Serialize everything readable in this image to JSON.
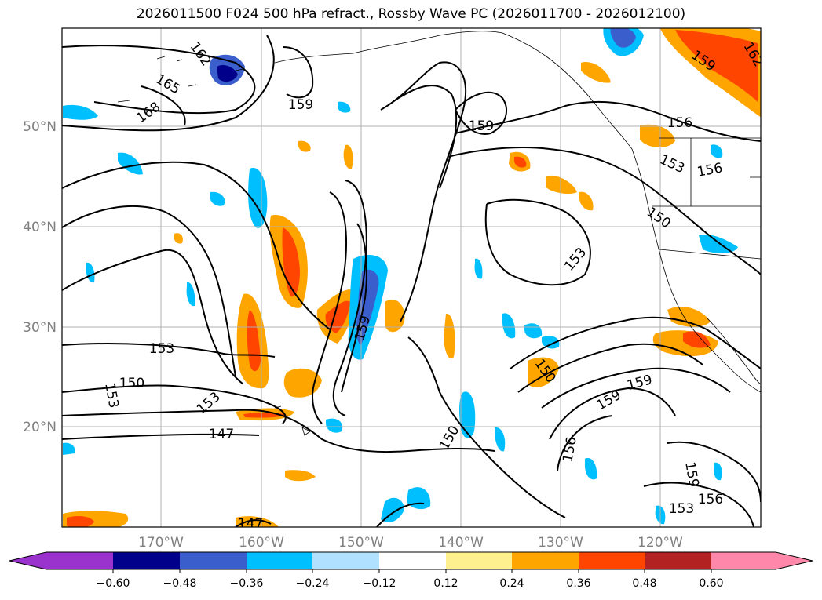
{
  "title": "2026011500 F024 500 hPa refract., Rossby Wave PC (2026011700 - 2026012100)",
  "map": {
    "lat_labels": [
      "50°N",
      "40°N",
      "30°N",
      "20°N"
    ],
    "lon_labels": [
      "170°W",
      "160°W",
      "150°W",
      "140°W",
      "130°W",
      "120°W"
    ],
    "contour_labels": [
      {
        "text": "162",
        "rot": 55
      },
      {
        "text": "165",
        "rot": 30
      },
      {
        "text": "168",
        "rot": -35
      },
      {
        "text": "159",
        "rot": 0
      },
      {
        "text": "159",
        "rot": 0
      },
      {
        "text": "159",
        "rot": 35
      },
      {
        "text": "162",
        "rot": 60
      },
      {
        "text": "156",
        "rot": 0
      },
      {
        "text": "153",
        "rot": 25
      },
      {
        "text": "156",
        "rot": -10
      },
      {
        "text": "150",
        "rot": 35
      },
      {
        "text": "153",
        "rot": -50
      },
      {
        "text": "153",
        "rot": 0
      },
      {
        "text": "150",
        "rot": 0
      },
      {
        "text": "153",
        "rot": 80
      },
      {
        "text": "153",
        "rot": -40
      },
      {
        "text": "147",
        "rot": 0
      },
      {
        "text": "159",
        "rot": -75
      },
      {
        "text": "150",
        "rot": -60
      },
      {
        "text": "150",
        "rot": 55
      },
      {
        "text": "156",
        "rot": -80
      },
      {
        "text": "159",
        "rot": -30
      },
      {
        "text": "159",
        "rot": -15
      },
      {
        "text": "159",
        "rot": 80
      },
      {
        "text": "156",
        "rot": 0
      },
      {
        "text": "153",
        "rot": 0
      },
      {
        "text": "147",
        "rot": 0
      }
    ]
  },
  "colorbar": {
    "ticks": [
      "−0.60",
      "−0.48",
      "−0.36",
      "−0.24",
      "−0.12",
      "0.12",
      "0.24",
      "0.36",
      "0.48",
      "0.60"
    ],
    "colors": [
      "#9a32cd",
      "#00008b",
      "#3a5fcd",
      "#00bfff",
      "#b0e2ff",
      "#ffffff",
      "#fff08f",
      "#ffa500",
      "#ff4500",
      "#b22222",
      "#ff88aa"
    ]
  }
}
